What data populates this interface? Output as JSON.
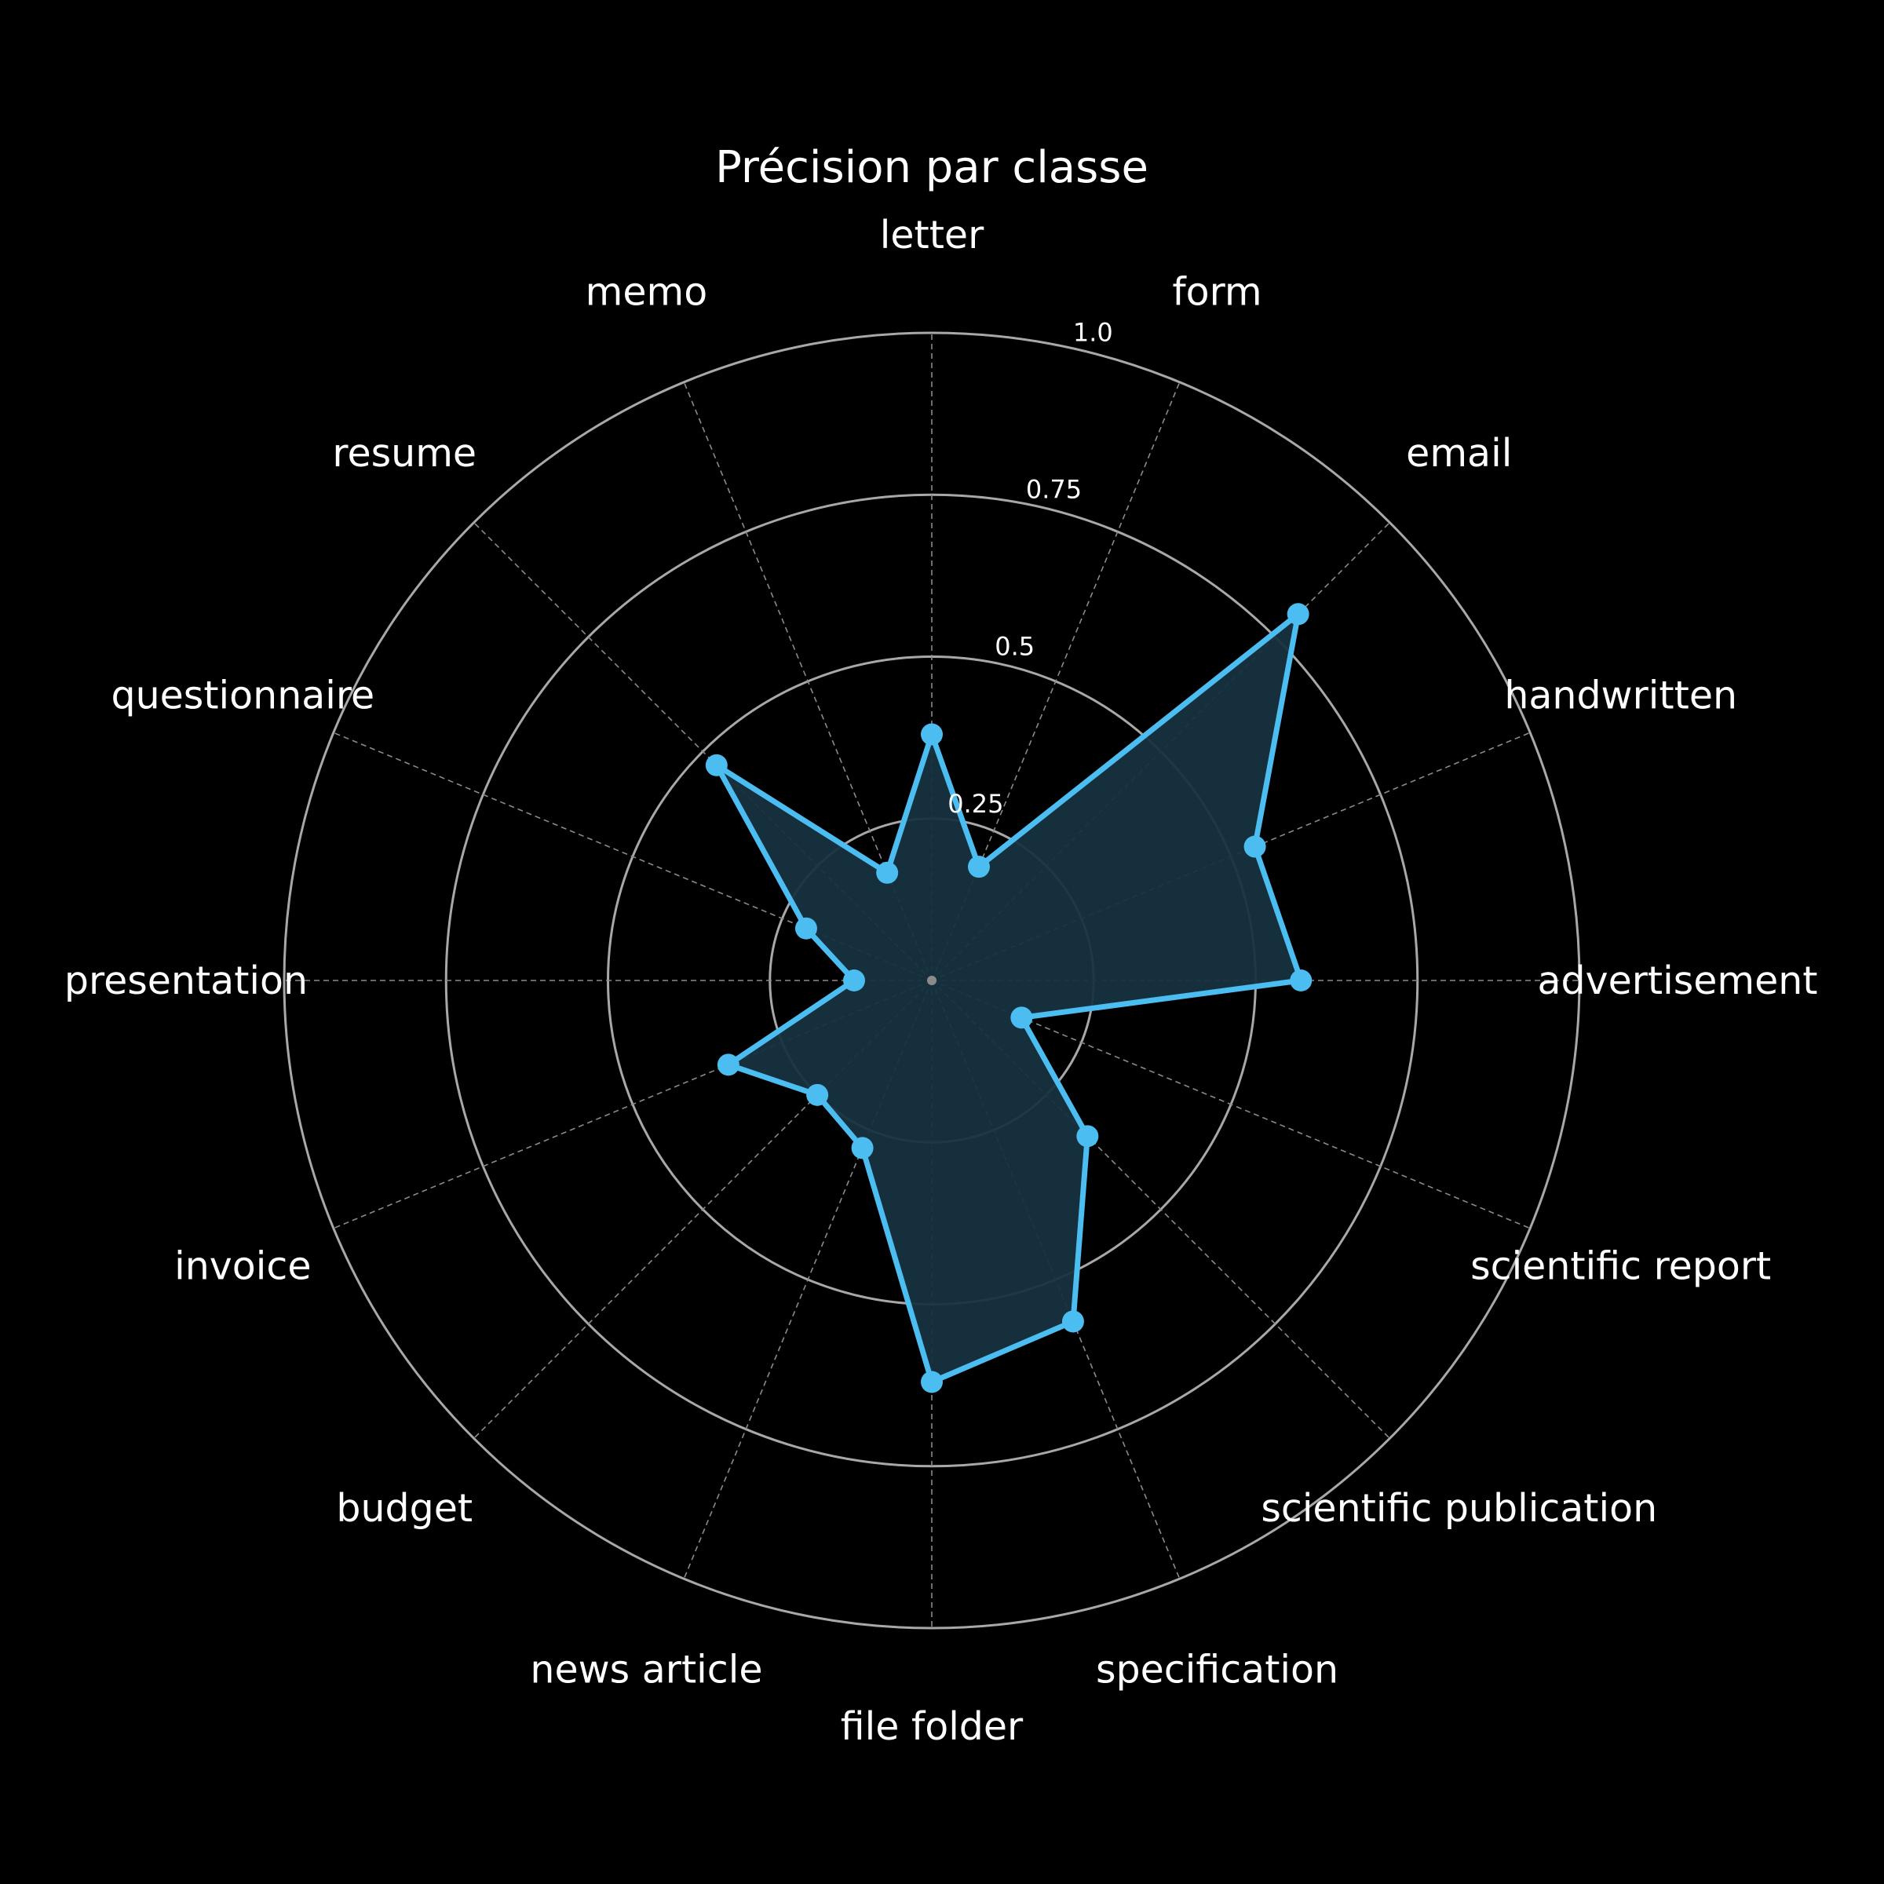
{
  "chart_data": {
    "type": "radar",
    "title": "Précision par classe",
    "categories": [
      "letter",
      "form",
      "email",
      "handwritten",
      "advertisement",
      "scientific report",
      "scientific publication",
      "specification",
      "file folder",
      "news article",
      "budget",
      "invoice",
      "presentation",
      "questionnaire",
      "resume",
      "memo"
    ],
    "series": [
      {
        "values": [
          0.38,
          0.19,
          0.8,
          0.54,
          0.57,
          0.15,
          0.34,
          0.57,
          0.62,
          0.28,
          0.25,
          0.34,
          0.12,
          0.21,
          0.47,
          0.18
        ]
      }
    ],
    "rlim": [
      0,
      1.0
    ],
    "radial_ticks": [
      "0.25",
      "0.5",
      "0.75",
      "1.0"
    ],
    "grid": true,
    "colors": {
      "background": "#000000",
      "line": "#4bbdf0",
      "fill": "#163140",
      "grid": "#a8a8a8",
      "text": "#ffffff"
    }
  }
}
